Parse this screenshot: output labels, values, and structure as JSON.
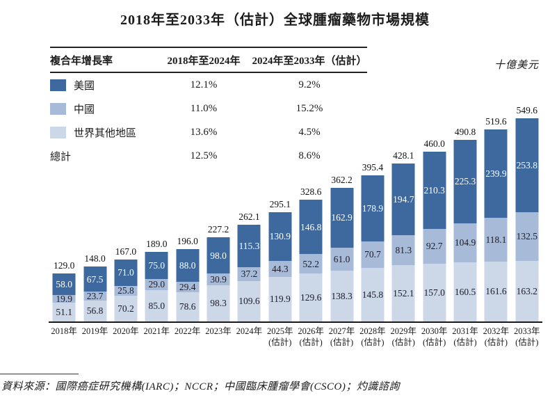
{
  "title": "2018年至2033年（估計）全球腫瘤藥物市場規模",
  "unit_label": "十億美元",
  "source_note": "資料來源：國際癌症研究機構(IARC)；NCCR；中國臨床腫瘤學會(CSCO)；灼識諮詢",
  "cagr_table": {
    "headers": [
      "複合年增長率",
      "2018年至2024年",
      "2024年至2033年（估計）"
    ],
    "rows": [
      {
        "label": "美國",
        "swatch": "#3e699e",
        "cagr_2018_2024": "12.1%",
        "cagr_2024_2033": "9.2%"
      },
      {
        "label": "中國",
        "swatch": "#a7bad7",
        "cagr_2018_2024": "11.0%",
        "cagr_2024_2033": "15.2%"
      },
      {
        "label": "世界其他地區",
        "swatch": "#ccd7e8",
        "cagr_2018_2024": "13.6%",
        "cagr_2024_2033": "4.5%"
      },
      {
        "label": "總計",
        "swatch": null,
        "cagr_2018_2024": "12.5%",
        "cagr_2024_2033": "8.6%"
      }
    ]
  },
  "chart_data": {
    "type": "bar",
    "stacked": true,
    "title": "2018年至2033年（估計）全球腫瘤藥物市場規模",
    "ylabel": "十億美元",
    "ylim": [
      0,
      560
    ],
    "grid": false,
    "legend_position": "top-left-table",
    "categories": [
      "2018年",
      "2019年",
      "2020年",
      "2021年",
      "2022年",
      "2023年",
      "2024年",
      "2025年",
      "2026年",
      "2027年",
      "2028年",
      "2029年",
      "2030年",
      "2031年",
      "2032年",
      "2033年"
    ],
    "category_sublabels": [
      "",
      "",
      "",
      "",
      "",
      "",
      "",
      "(估計)",
      "(估計)",
      "(估計)",
      "(估計)",
      "(估計)",
      "(估計)",
      "(估計)",
      "(估計)",
      "(估計)"
    ],
    "series": [
      {
        "name": "美國",
        "color": "#3e699e",
        "label_color": "#ffffff",
        "values": [
          58.0,
          67.5,
          71.0,
          75.0,
          88.0,
          98.0,
          115.3,
          130.9,
          146.8,
          162.9,
          178.9,
          194.7,
          210.3,
          225.3,
          239.9,
          253.8
        ]
      },
      {
        "name": "中國",
        "color": "#a7bad7",
        "label_color": "#1c1c28",
        "values": [
          19.9,
          23.7,
          25.8,
          29.0,
          29.4,
          30.9,
          37.2,
          44.3,
          52.2,
          61.0,
          70.7,
          81.3,
          92.7,
          104.9,
          118.1,
          132.5
        ]
      },
      {
        "name": "世界其他地區",
        "color": "#ccd7e8",
        "label_color": "#1c1c28",
        "values": [
          51.1,
          56.8,
          70.2,
          85.0,
          78.6,
          98.3,
          109.6,
          119.9,
          129.6,
          138.3,
          145.8,
          152.1,
          157.0,
          160.5,
          161.6,
          163.2
        ]
      }
    ],
    "totals": [
      129.0,
      148.0,
      167.0,
      189.0,
      196.0,
      227.2,
      262.1,
      295.1,
      328.6,
      362.2,
      395.4,
      428.1,
      460.0,
      490.8,
      519.6,
      549.6
    ]
  }
}
